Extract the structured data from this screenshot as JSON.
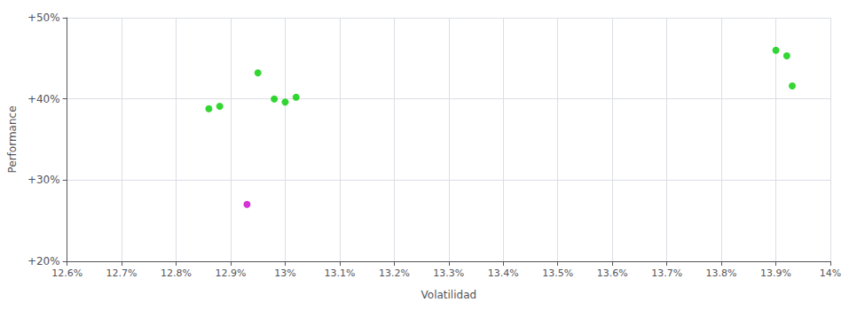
{
  "chart_data": {
    "type": "scatter",
    "xlabel": "Volatilidad",
    "ylabel": "Performance",
    "xlim": [
      0.126,
      0.14
    ],
    "ylim": [
      0.2,
      0.5
    ],
    "xticks": [
      {
        "value": 0.126,
        "label": "12.6%"
      },
      {
        "value": 0.127,
        "label": "12.7%"
      },
      {
        "value": 0.128,
        "label": "12.8%"
      },
      {
        "value": 0.129,
        "label": "12.9%"
      },
      {
        "value": 0.13,
        "label": "13%"
      },
      {
        "value": 0.131,
        "label": "13.1%"
      },
      {
        "value": 0.132,
        "label": "13.2%"
      },
      {
        "value": 0.133,
        "label": "13.3%"
      },
      {
        "value": 0.134,
        "label": "13.4%"
      },
      {
        "value": 0.135,
        "label": "13.5%"
      },
      {
        "value": 0.136,
        "label": "13.6%"
      },
      {
        "value": 0.137,
        "label": "13.7%"
      },
      {
        "value": 0.138,
        "label": "13.8%"
      },
      {
        "value": 0.139,
        "label": "13.9%"
      },
      {
        "value": 0.14,
        "label": "14%"
      }
    ],
    "yticks": [
      {
        "value": 0.2,
        "label": "+20%"
      },
      {
        "value": 0.3,
        "label": "+30%"
      },
      {
        "value": 0.4,
        "label": "+40%"
      },
      {
        "value": 0.5,
        "label": "+50%"
      }
    ],
    "grid": true,
    "series": [
      {
        "color": "#00cc00",
        "x": [
          0.1286,
          0.1288,
          0.1295,
          0.1298,
          0.13,
          0.1302,
          0.139,
          0.1392,
          0.1393
        ],
        "values": [
          0.388,
          0.391,
          0.432,
          0.4,
          0.396,
          0.402,
          0.46,
          0.453,
          0.416
        ]
      },
      {
        "color": "#cc00cc",
        "x": [
          0.1293
        ],
        "values": [
          0.27
        ]
      }
    ]
  }
}
